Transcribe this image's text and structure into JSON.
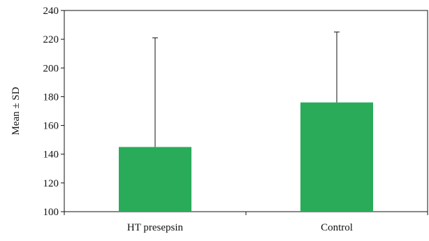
{
  "chart_data": {
    "type": "bar",
    "categories": [
      "HT presepsin",
      "Control"
    ],
    "values": [
      145,
      176
    ],
    "error_upper": [
      221,
      225
    ],
    "xlabel": "",
    "ylabel": "Mean ± SD",
    "ylim": [
      100,
      240
    ],
    "yticks": [
      100,
      120,
      140,
      160,
      180,
      200,
      220,
      240
    ],
    "grid": false,
    "legend": "none",
    "bar_color": "#2aab5a",
    "axis_color": "#111111"
  }
}
